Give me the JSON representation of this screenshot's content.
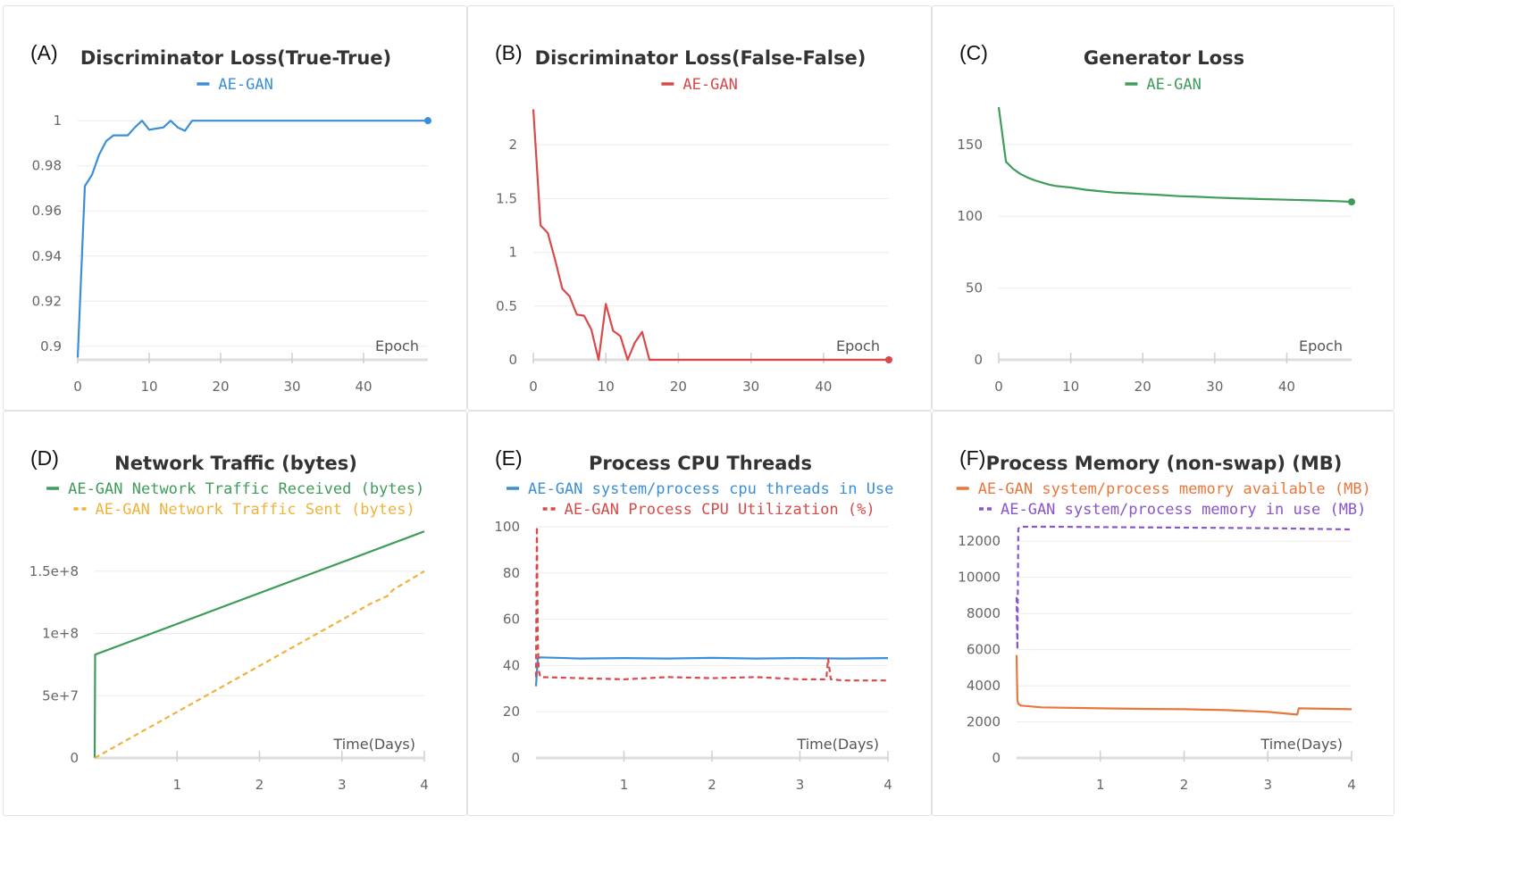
{
  "chart_data": [
    {
      "panel": "(A)",
      "type": "line",
      "title": "Discriminator Loss(True-True)",
      "xlabel": "Epoch",
      "ylabel": "",
      "xlim": [
        0,
        49
      ],
      "ylim": [
        0.894,
        1.006
      ],
      "xticks": [
        "0",
        "10",
        "20",
        "30",
        "40"
      ],
      "yticks": [
        "0.9",
        "0.92",
        "0.94",
        "0.96",
        "0.98",
        "1"
      ],
      "ytick_values": [
        0.9,
        0.92,
        0.94,
        0.96,
        0.98,
        1
      ],
      "legend": "top-center",
      "grid": true,
      "series": [
        {
          "name": "AE-GAN",
          "color": "#3b8fd6",
          "dash": false,
          "endpoint": true,
          "x": [
            0,
            1,
            2,
            3,
            4,
            5,
            6,
            7,
            8,
            9,
            10,
            11,
            12,
            13,
            14,
            15,
            16,
            17,
            18,
            19,
            20,
            25,
            30,
            35,
            40,
            45,
            49
          ],
          "y": [
            0.895,
            0.971,
            0.976,
            0.985,
            0.991,
            0.9935,
            0.9935,
            0.9935,
            0.997,
            1.0,
            0.996,
            0.9965,
            0.997,
            1.0,
            0.997,
            0.9955,
            1.0,
            1.0,
            1.0,
            1.0,
            1.0,
            1.0,
            1.0,
            1.0,
            1.0,
            1.0,
            1.0
          ]
        }
      ]
    },
    {
      "panel": "(B)",
      "type": "line",
      "title": "Discriminator Loss(False-False)",
      "xlabel": "Epoch",
      "ylabel": "",
      "xlim": [
        0,
        49
      ],
      "ylim": [
        0,
        2.35
      ],
      "xticks": [
        "0",
        "10",
        "20",
        "30",
        "40"
      ],
      "yticks": [
        "0",
        "0.5",
        "1",
        "1.5",
        "2"
      ],
      "ytick_values": [
        0,
        0.5,
        1,
        1.5,
        2
      ],
      "legend": "top-center",
      "grid": true,
      "series": [
        {
          "name": "AE-GAN",
          "color": "#d84a4a",
          "dash": false,
          "endpoint": true,
          "x": [
            0,
            1,
            2,
            3,
            4,
            5,
            6,
            7,
            8,
            9,
            10,
            11,
            12,
            13,
            14,
            15,
            16,
            17,
            20,
            25,
            30,
            35,
            40,
            45,
            49
          ],
          "y": [
            2.33,
            1.25,
            1.18,
            0.93,
            0.66,
            0.59,
            0.42,
            0.41,
            0.28,
            0.0,
            0.52,
            0.27,
            0.22,
            0.0,
            0.16,
            0.26,
            0.0,
            0.0,
            0.0,
            0.0,
            0.0,
            0.0,
            0.0,
            0.0,
            0.0
          ]
        }
      ]
    },
    {
      "panel": "(C)",
      "type": "line",
      "title": "Generator Loss",
      "xlabel": "Epoch",
      "ylabel": "",
      "xlim": [
        0,
        49
      ],
      "ylim": [
        0,
        176
      ],
      "xticks": [
        "0",
        "10",
        "20",
        "30",
        "40"
      ],
      "yticks": [
        "0",
        "50",
        "100",
        "150"
      ],
      "ytick_values": [
        0,
        50,
        100,
        150
      ],
      "legend": "top-center",
      "grid": true,
      "series": [
        {
          "name": "AE-GAN",
          "color": "#3f9c5a",
          "dash": false,
          "endpoint": true,
          "x": [
            0,
            1,
            2,
            3,
            4,
            5,
            6,
            7,
            8,
            9,
            10,
            12,
            14,
            16,
            18,
            20,
            22,
            25,
            28,
            30,
            33,
            36,
            40,
            44,
            47,
            49
          ],
          "y": [
            176,
            138,
            133,
            129.5,
            127,
            125,
            123.5,
            122,
            121,
            120.5,
            120,
            118.5,
            117.5,
            116.5,
            116,
            115.5,
            115,
            114,
            113.5,
            113,
            112.5,
            112,
            111.5,
            111,
            110.5,
            110
          ]
        }
      ]
    },
    {
      "panel": "(D)",
      "type": "line",
      "title": "Network Traffic (bytes)",
      "xlabel": "Time(Days)",
      "ylabel": "",
      "xlim": [
        0,
        4
      ],
      "ylim": [
        0,
        185000000.0
      ],
      "xticks": [
        "1",
        "2",
        "3",
        "4"
      ],
      "xtick_values": [
        1,
        2,
        3,
        4
      ],
      "yticks": [
        "0",
        "5e+7",
        "1e+8",
        "1.5e+8"
      ],
      "ytick_values": [
        0,
        50000000.0,
        100000000.0,
        150000000.0
      ],
      "legend": "top-center",
      "grid": true,
      "series": [
        {
          "name": "AE-GAN Network Traffic Received (bytes)",
          "color": "#3f9c5a",
          "dash": false,
          "x": [
            0,
            0.005,
            4
          ],
          "y": [
            0,
            83000000.0,
            182000000.0
          ]
        },
        {
          "name": "AE-GAN Network Traffic Sent (bytes)",
          "color": "#f0b23a",
          "dash": true,
          "x": [
            0,
            1,
            2,
            3,
            3.35,
            3.55,
            3.62,
            4
          ],
          "y": [
            0,
            37000000.0,
            74000000.0,
            111000000.0,
            124000000.0,
            130000000.0,
            135000000.0,
            150000000.0
          ]
        }
      ]
    },
    {
      "panel": "(E)",
      "type": "line",
      "title": "Process CPU Threads",
      "xlabel": "Time(Days)",
      "ylabel": "",
      "xlim": [
        0,
        4
      ],
      "ylim": [
        0,
        100
      ],
      "xticks": [
        "1",
        "2",
        "3",
        "4"
      ],
      "xtick_values": [
        1,
        2,
        3,
        4
      ],
      "yticks": [
        "0",
        "20",
        "40",
        "60",
        "80",
        "100"
      ],
      "ytick_values": [
        0,
        20,
        40,
        60,
        80,
        100
      ],
      "legend": "top-center",
      "grid": true,
      "series": [
        {
          "name": "AE-GAN system/process cpu threads in Use",
          "color": "#3b8fd6",
          "dash": false,
          "x": [
            0,
            0.02,
            0.05,
            0.5,
            1,
            1.5,
            2,
            2.5,
            3,
            3.5,
            4
          ],
          "y": [
            31,
            43,
            43.5,
            43,
            43.2,
            43,
            43.3,
            43,
            43.2,
            43,
            43.2
          ]
        },
        {
          "name": "AE-GAN Process CPU Utilization (%)",
          "color": "#d84a4a",
          "dash": true,
          "x": [
            0,
            0.01,
            0.02,
            0.03,
            0.05,
            0.5,
            1,
            1.5,
            2,
            2.5,
            3,
            3.3,
            3.32,
            3.35,
            3.5,
            4
          ],
          "y": [
            35,
            100,
            52,
            38,
            35,
            34.5,
            34,
            35,
            34.5,
            35,
            34,
            34,
            43,
            34,
            33.5,
            33.5
          ]
        }
      ]
    },
    {
      "panel": "(F)",
      "type": "line",
      "title": "Process Memory (non-swap) (MB)",
      "xlabel": "Time(Days)",
      "ylabel": "",
      "xlim": [
        0,
        4
      ],
      "ylim": [
        0,
        12800
      ],
      "xticks": [
        "1",
        "2",
        "3",
        "4"
      ],
      "xtick_values": [
        1,
        2,
        3,
        4
      ],
      "yticks": [
        "0",
        "2000",
        "4000",
        "6000",
        "8000",
        "10000",
        "12000"
      ],
      "ytick_values": [
        0,
        2000,
        4000,
        6000,
        8000,
        10000,
        12000
      ],
      "legend": "top-center",
      "grid": true,
      "series": [
        {
          "name": "AE-GAN system/process memory available (MB)",
          "color": "#e8773a",
          "dash": false,
          "x": [
            0,
            0.01,
            0.02,
            0.05,
            0.3,
            1,
            1.5,
            2,
            2.5,
            3,
            3.35,
            3.37,
            4
          ],
          "y": [
            5700,
            3200,
            3000,
            2900,
            2800,
            2750,
            2720,
            2700,
            2650,
            2550,
            2400,
            2750,
            2700
          ]
        },
        {
          "name": "AE-GAN system/process memory in use (MB)",
          "color": "#8a55c8",
          "dash": true,
          "x": [
            0,
            0.01,
            0.02,
            0.05,
            0.5,
            1,
            2,
            3,
            4
          ],
          "y": [
            8900,
            6000,
            12700,
            12800,
            12800,
            12780,
            12750,
            12720,
            12650
          ]
        }
      ]
    }
  ]
}
